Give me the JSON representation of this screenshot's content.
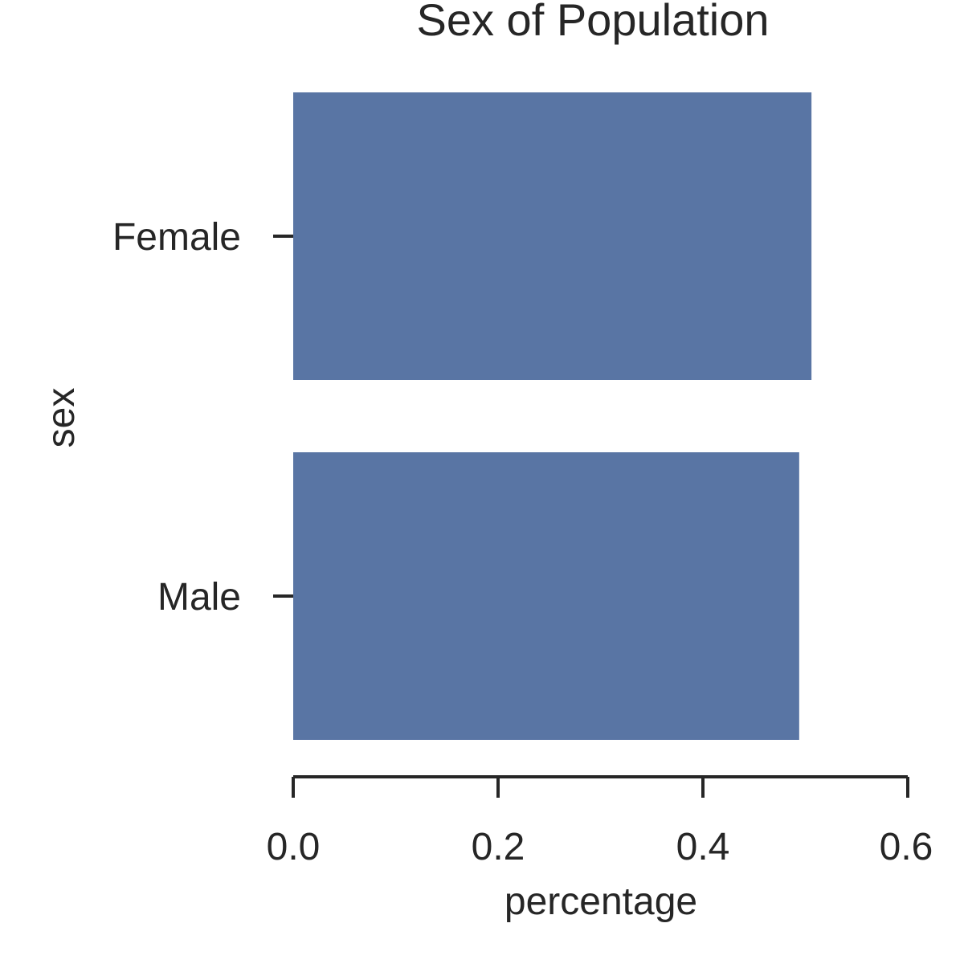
{
  "chart_data": {
    "type": "bar",
    "orientation": "horizontal",
    "title": "Sex of Population",
    "xlabel": "percentage",
    "ylabel": "sex",
    "categories": [
      "Female",
      "Male"
    ],
    "values": [
      0.506,
      0.494
    ],
    "xlim": [
      0,
      0.6
    ],
    "xticks": [
      "0.0",
      "0.2",
      "0.4",
      "0.6"
    ],
    "grid": false,
    "bar_color": "#5975a4"
  }
}
